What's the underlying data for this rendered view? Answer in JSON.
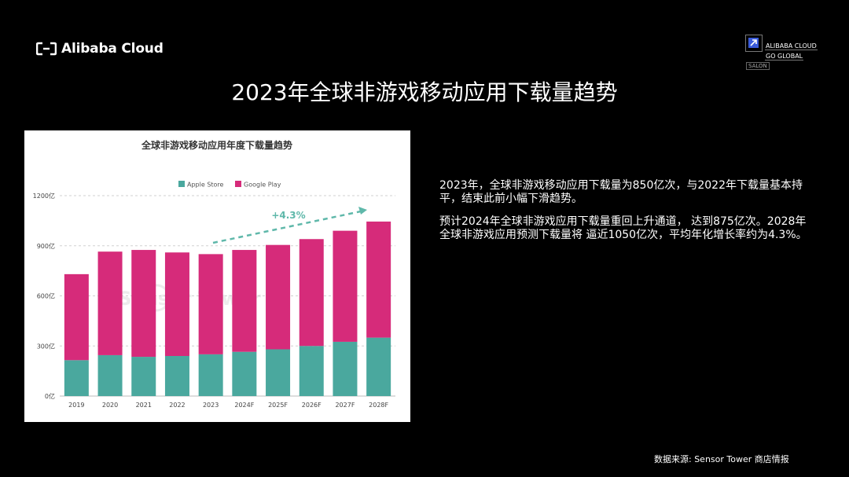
{
  "logo": {
    "text": "Alibaba Cloud"
  },
  "badge": {
    "line1": "ALIBABA CLOUD",
    "line2": "GO GLOBAL",
    "line3": "SALON"
  },
  "title": "2023年全球非游戏移动应用下载量趋势",
  "paragraphs": [
    "2023年，全球非游戏移动应用下载量为850亿次，与2022年下载量基本持平，结束此前小幅下滑趋势。",
    "预计2024年全球非游戏应用下载量重回上升通道， 达到875亿次。2028年全球非游戏应用预测下载量将 逼近1050亿次，平均年化增长率约为4.3%。"
  ],
  "source": "数据来源: Sensor Tower 商店情报",
  "chart_data": {
    "type": "bar",
    "stacked": true,
    "title": "全球非游戏移动应用年度下载量趋势",
    "categories": [
      "2019",
      "2020",
      "2021",
      "2022",
      "2023",
      "2024F",
      "2025F",
      "2026F",
      "2027F",
      "2028F"
    ],
    "series": [
      {
        "name": "Apple Store",
        "color": "#4aa89e",
        "values": [
          215,
          245,
          235,
          240,
          250,
          265,
          280,
          300,
          325,
          350
        ]
      },
      {
        "name": "Google Play",
        "color": "#d62b7a",
        "values": [
          515,
          620,
          640,
          620,
          600,
          610,
          625,
          640,
          665,
          695
        ]
      }
    ],
    "ylim": [
      0,
      1200
    ],
    "yticks": [
      0,
      300,
      600,
      900,
      1200
    ],
    "ytick_labels": [
      "0亿",
      "300亿",
      "600亿",
      "900亿",
      "1200亿"
    ],
    "annotation": "+4.3%",
    "annotation_color": "#5fb8aa",
    "legend_position": "top",
    "grid": true,
    "watermark": "Sensor Tower"
  }
}
